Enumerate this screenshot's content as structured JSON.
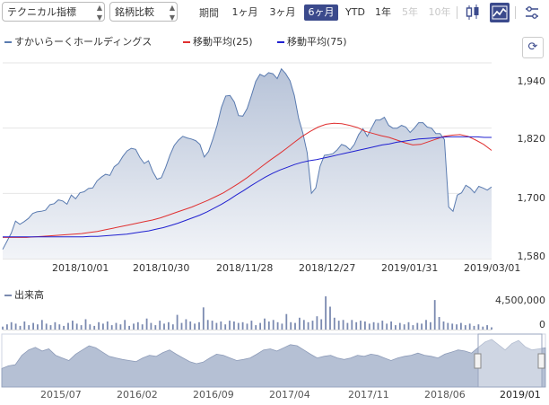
{
  "toolbar": {
    "indicator_select": "テクニカル指標",
    "compare_select": "銘柄比較",
    "period_label": "期間",
    "periods": [
      "1ヶ月",
      "3ヶ月",
      "6ヶ月",
      "YTD",
      "1年",
      "5年",
      "10年"
    ],
    "active_period": "6ヶ月",
    "disabled_periods": [
      "5年",
      "10年"
    ],
    "chart_types": [
      "candlestick-icon",
      "line-chart-icon"
    ],
    "active_chart_type": "line-chart-icon"
  },
  "legend": {
    "price": "すかいらーくホールディングス",
    "ma25": "移動平均(25)",
    "ma75": "移動平均(75)"
  },
  "refresh_icon": "refresh-icon",
  "colors": {
    "price_line": "#5a7bb0",
    "price_fill": "#b7c3d8",
    "ma25": "#e03030",
    "ma75": "#2020d0",
    "volume": "#7b8ab0",
    "accent": "#3b4a8c"
  },
  "chart_data": [
    {
      "type": "line",
      "x_tick_labels": [
        "2018/10/01",
        "2018/10/30",
        "2018/11/28",
        "2018/12/27",
        "2019/01/31",
        "2019/03/01"
      ],
      "y_tick_labels": [
        "1,940",
        "1,820",
        "1,700",
        "1,580"
      ],
      "ylim": [
        1580,
        1940
      ],
      "grid": true,
      "series": [
        {
          "name": "すかいらーくホールディングス",
          "values": [
            1597,
            1612,
            1627,
            1649,
            1643,
            1648,
            1654,
            1663,
            1666,
            1667,
            1669,
            1679,
            1681,
            1688,
            1686,
            1680,
            1697,
            1690,
            1701,
            1703,
            1709,
            1710,
            1723,
            1730,
            1735,
            1733,
            1749,
            1755,
            1768,
            1778,
            1783,
            1781,
            1766,
            1755,
            1760,
            1740,
            1726,
            1729,
            1748,
            1770,
            1788,
            1798,
            1805,
            1802,
            1800,
            1797,
            1790,
            1767,
            1777,
            1800,
            1825,
            1858,
            1879,
            1880,
            1868,
            1843,
            1842,
            1856,
            1880,
            1906,
            1919,
            1915,
            1922,
            1920,
            1911,
            1929,
            1920,
            1907,
            1880,
            1838,
            1811,
            1775,
            1700,
            1710,
            1750,
            1770,
            1771,
            1773,
            1780,
            1790,
            1787,
            1780,
            1790,
            1808,
            1819,
            1805,
            1820,
            1835,
            1835,
            1840,
            1825,
            1820,
            1820,
            1825,
            1822,
            1812,
            1820,
            1830,
            1830,
            1822,
            1820,
            1810,
            1810,
            1799,
            1675,
            1667,
            1697,
            1701,
            1715,
            1710,
            1701,
            1713,
            1710,
            1706,
            1712
          ]
        },
        {
          "name": "移動平均(25)",
          "values": [
            1619,
            1619,
            1619,
            1619,
            1620,
            1621,
            1622,
            1623,
            1624,
            1625,
            1626,
            1628,
            1630,
            1633,
            1636,
            1639,
            1642,
            1645,
            1648,
            1651,
            1655,
            1660,
            1665,
            1670,
            1675,
            1681,
            1687,
            1694,
            1701,
            1710,
            1719,
            1729,
            1740,
            1751,
            1762,
            1772,
            1783,
            1794,
            1805,
            1814,
            1822,
            1827,
            1829,
            1828,
            1825,
            1821,
            1814,
            1810,
            1806,
            1803,
            1798,
            1793,
            1789,
            1790,
            1795,
            1800,
            1805,
            1807,
            1808,
            1805,
            1798,
            1790,
            1779
          ]
        },
        {
          "name": "移動平均(75)",
          "values": [
            1620,
            1620,
            1620,
            1620,
            1620,
            1620,
            1620,
            1620,
            1620,
            1620,
            1620,
            1620,
            1621,
            1621,
            1622,
            1623,
            1624,
            1625,
            1627,
            1629,
            1631,
            1634,
            1637,
            1641,
            1645,
            1650,
            1655,
            1660,
            1666,
            1673,
            1680,
            1688,
            1697,
            1705,
            1714,
            1722,
            1730,
            1737,
            1743,
            1748,
            1753,
            1757,
            1760,
            1762,
            1765,
            1768,
            1771,
            1774,
            1777,
            1780,
            1783,
            1786,
            1789,
            1791,
            1794,
            1796,
            1798,
            1800,
            1801,
            1802,
            1803,
            1804,
            1804,
            1804,
            1804,
            1804,
            1803,
            1803
          ]
        }
      ]
    },
    {
      "type": "bar",
      "title": "出来高",
      "y_tick_labels": [
        "4,500,000",
        "0"
      ],
      "ylim": [
        0,
        4500000
      ],
      "values": [
        400000,
        700000,
        1000000,
        800000,
        500000,
        1100000,
        600000,
        900000,
        700000,
        1300000,
        800000,
        600000,
        1000000,
        700000,
        500000,
        900000,
        1200000,
        800000,
        600000,
        1400000,
        700000,
        500000,
        1000000,
        800000,
        1100000,
        600000,
        900000,
        700000,
        1300000,
        500000,
        800000,
        1000000,
        700000,
        1500000,
        900000,
        600000,
        1200000,
        800000,
        1000000,
        700000,
        2000000,
        900000,
        1400000,
        1100000,
        800000,
        1000000,
        3000000,
        1300000,
        1200000,
        900000,
        1100000,
        700000,
        1200000,
        1100000,
        900000,
        1000000,
        800000,
        1200000,
        600000,
        900000,
        1500000,
        1100000,
        1300000,
        1000000,
        800000,
        2100000,
        1000000,
        900000,
        1600000,
        1300000,
        1000000,
        1200000,
        1800000,
        1400000,
        4600000,
        3100000,
        1600000,
        1200000,
        1300000,
        900000,
        1300000,
        1000000,
        1200000,
        1100000,
        800000,
        1000000,
        900000,
        1200000,
        800000,
        1100000,
        600000,
        900000,
        700000,
        1000000,
        600000,
        900000,
        800000,
        1300000,
        1000000,
        4000000,
        1700000,
        1100000,
        900000,
        800000,
        700000,
        900000,
        600000,
        800000,
        500000,
        700000,
        400000,
        600000,
        300000
      ]
    },
    {
      "type": "area",
      "x_tick_labels": [
        "2015/07",
        "2016/02",
        "2016/09",
        "2017/04",
        "2017/11",
        "2018/06",
        "2019/01"
      ],
      "values": [
        0.35,
        0.4,
        0.42,
        0.6,
        0.7,
        0.75,
        0.68,
        0.72,
        0.6,
        0.55,
        0.5,
        0.62,
        0.7,
        0.78,
        0.74,
        0.66,
        0.58,
        0.55,
        0.52,
        0.5,
        0.48,
        0.55,
        0.6,
        0.58,
        0.65,
        0.7,
        0.62,
        0.55,
        0.48,
        0.44,
        0.47,
        0.55,
        0.62,
        0.6,
        0.55,
        0.5,
        0.52,
        0.55,
        0.62,
        0.7,
        0.72,
        0.68,
        0.74,
        0.8,
        0.78,
        0.7,
        0.62,
        0.55,
        0.58,
        0.6,
        0.55,
        0.52,
        0.55,
        0.6,
        0.58,
        0.62,
        0.6,
        0.55,
        0.5,
        0.55,
        0.58,
        0.6,
        0.64,
        0.6,
        0.58,
        0.55,
        0.62,
        0.66,
        0.7,
        0.68,
        0.64,
        0.75,
        0.85,
        0.9,
        0.8,
        0.7,
        0.82,
        0.88,
        0.76,
        0.7,
        0.72,
        0.74
      ]
    }
  ]
}
